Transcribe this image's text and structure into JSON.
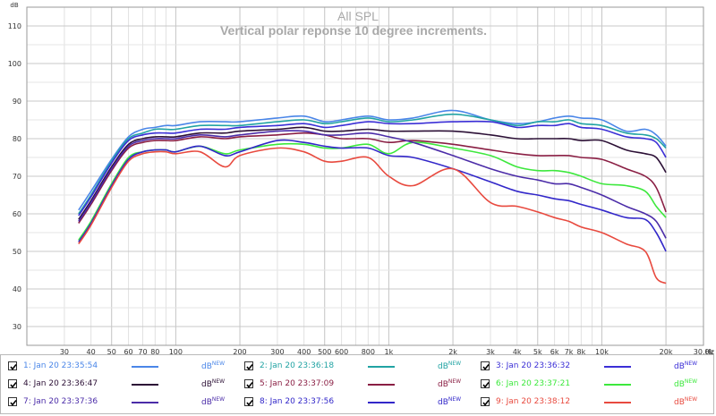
{
  "chart_data": {
    "type": "line",
    "title": "All SPL",
    "subtitle": "Vertical polar reponse 10 degree increments.",
    "ylabel": "dB",
    "xlabel": "Hz",
    "x_scale": "log",
    "xlim": [
      20,
      30000
    ],
    "ylim": [
      25,
      115
    ],
    "yticks": [
      30,
      40,
      50,
      60,
      70,
      80,
      90,
      100,
      110
    ],
    "xticks": [
      {
        "v": 30,
        "label": "30"
      },
      {
        "v": 40,
        "label": "40"
      },
      {
        "v": 50,
        "label": "50"
      },
      {
        "v": 60,
        "label": "60"
      },
      {
        "v": 70,
        "label": "70"
      },
      {
        "v": 80,
        "label": "80"
      },
      {
        "v": 100,
        "label": "100"
      },
      {
        "v": 200,
        "label": "200"
      },
      {
        "v": 300,
        "label": "300"
      },
      {
        "v": 400,
        "label": "400"
      },
      {
        "v": 500,
        "label": "500"
      },
      {
        "v": 600,
        "label": "600"
      },
      {
        "v": 800,
        "label": "800"
      },
      {
        "v": 1000,
        "label": "1k"
      },
      {
        "v": 2000,
        "label": "2k"
      },
      {
        "v": 3000,
        "label": "3k"
      },
      {
        "v": 4000,
        "label": "4k"
      },
      {
        "v": 5000,
        "label": "5k"
      },
      {
        "v": 6000,
        "label": "6k"
      },
      {
        "v": 7000,
        "label": "7k"
      },
      {
        "v": 8000,
        "label": "8k"
      },
      {
        "v": 10000,
        "label": "10k"
      },
      {
        "v": 20000,
        "label": "20k"
      },
      {
        "v": 30000,
        "label": "30.0k"
      }
    ],
    "grid": true,
    "legend_position": "bottom",
    "x": [
      35,
      40,
      50,
      60,
      70,
      80,
      90,
      100,
      130,
      170,
      200,
      300,
      400,
      500,
      600,
      800,
      1000,
      1300,
      2000,
      3000,
      4000,
      5000,
      6000,
      7000,
      8000,
      10000,
      13000,
      16000,
      18000,
      20000
    ],
    "series": [
      {
        "name": "1: Jan 20 23:35:54",
        "unit": "dB",
        "tag": "NEW",
        "color": "#4a86e8",
        "values": [
          61,
          66,
          74.5,
          80.5,
          82.5,
          83,
          83.5,
          83.5,
          84.5,
          84.5,
          84.5,
          85.5,
          86,
          84.5,
          85,
          86,
          85,
          85.5,
          87.5,
          85,
          84,
          84.5,
          85.5,
          86,
          85.5,
          85,
          82,
          82.5,
          81,
          78
        ]
      },
      {
        "name": "2: Jan 20 23:36:18",
        "unit": "dB",
        "tag": "NEW",
        "color": "#21a3a3",
        "values": [
          60,
          65,
          74,
          80,
          81.5,
          82.5,
          82.5,
          82.5,
          83.5,
          83.5,
          83.5,
          84.5,
          85,
          84,
          84.5,
          85.5,
          84.5,
          85,
          86.5,
          85,
          83.5,
          84.5,
          84.5,
          85,
          84,
          83.5,
          81.5,
          81,
          80,
          77.5
        ]
      },
      {
        "name": "3: Jan 20 23:36:32",
        "unit": "dB",
        "tag": "NEW",
        "color": "#3b2fd6",
        "values": [
          59.5,
          64.5,
          73.5,
          79.5,
          81,
          81.5,
          81.5,
          81.5,
          82.5,
          82.5,
          83,
          83.5,
          84,
          83,
          83.5,
          84.5,
          84,
          84,
          84.5,
          84.5,
          83,
          83.5,
          83.5,
          84,
          83,
          82.5,
          80.5,
          80,
          79,
          75
        ]
      },
      {
        "name": "4: Jan 20 23:36:47",
        "unit": "dB",
        "tag": "NEW",
        "color": "#2c1036",
        "values": [
          58.5,
          63.5,
          72.5,
          78.5,
          80,
          80.5,
          80.5,
          80.5,
          81.5,
          81.5,
          82,
          82.5,
          83,
          82,
          82,
          82.5,
          82,
          82,
          82,
          81,
          80,
          80,
          80,
          80,
          79.5,
          79.5,
          77,
          76,
          75,
          71
        ]
      },
      {
        "name": "5: Jan 20 23:37:09",
        "unit": "dB",
        "tag": "NEW",
        "color": "#8a1f44",
        "values": [
          57.5,
          62.5,
          71.5,
          77.5,
          79,
          79.5,
          79.5,
          79.5,
          80.5,
          80,
          80.5,
          81,
          81.5,
          81,
          80,
          80,
          79,
          79.5,
          78.5,
          77,
          76,
          75.5,
          75.5,
          75.5,
          75,
          74.5,
          72,
          70,
          67,
          60.5
        ]
      },
      {
        "name": "6: Jan 20 23:37:21",
        "unit": "dB",
        "tag": "NEW",
        "color": "#3de83d",
        "values": [
          53,
          58,
          68,
          75,
          76.5,
          77,
          77,
          76.5,
          78,
          76,
          77,
          78.5,
          78.5,
          77.5,
          77.5,
          78.5,
          76,
          79,
          77.5,
          75.5,
          72.5,
          71.5,
          71.5,
          71,
          70,
          68,
          67.5,
          66,
          62,
          59
        ]
      },
      {
        "name": "7: Jan 20 23:37:36",
        "unit": "dB",
        "tag": "NEW",
        "color": "#4b2ca8",
        "values": [
          58,
          63,
          72,
          78,
          79.5,
          80,
          80,
          80,
          81,
          80.5,
          81,
          82,
          82,
          81,
          81,
          81.5,
          80.5,
          79,
          75.5,
          72,
          70,
          69,
          68,
          68,
          67,
          65,
          62,
          60,
          58,
          53.5
        ]
      },
      {
        "name": "8: Jan 20 23:37:56",
        "unit": "dB",
        "tag": "NEW",
        "color": "#3227c9",
        "values": [
          52.5,
          57.5,
          67.5,
          74.5,
          76.5,
          77,
          77,
          76.5,
          78,
          75.5,
          76.5,
          79.5,
          79,
          78,
          77.5,
          77.5,
          75.5,
          75,
          72,
          68.5,
          66,
          65,
          64,
          63.5,
          62.5,
          61,
          59,
          58.5,
          55,
          50
        ]
      },
      {
        "name": "9: Jan 20 23:38:12",
        "unit": "dB",
        "tag": "NEW",
        "color": "#e84a3f",
        "values": [
          52,
          57,
          67,
          74,
          76,
          76.5,
          76.5,
          76,
          76.5,
          72.5,
          75.5,
          77.5,
          76.5,
          74,
          74,
          75,
          70,
          67.5,
          72,
          63,
          62,
          60.5,
          59,
          58,
          56.5,
          55,
          52,
          50,
          43,
          41.5
        ]
      }
    ]
  }
}
